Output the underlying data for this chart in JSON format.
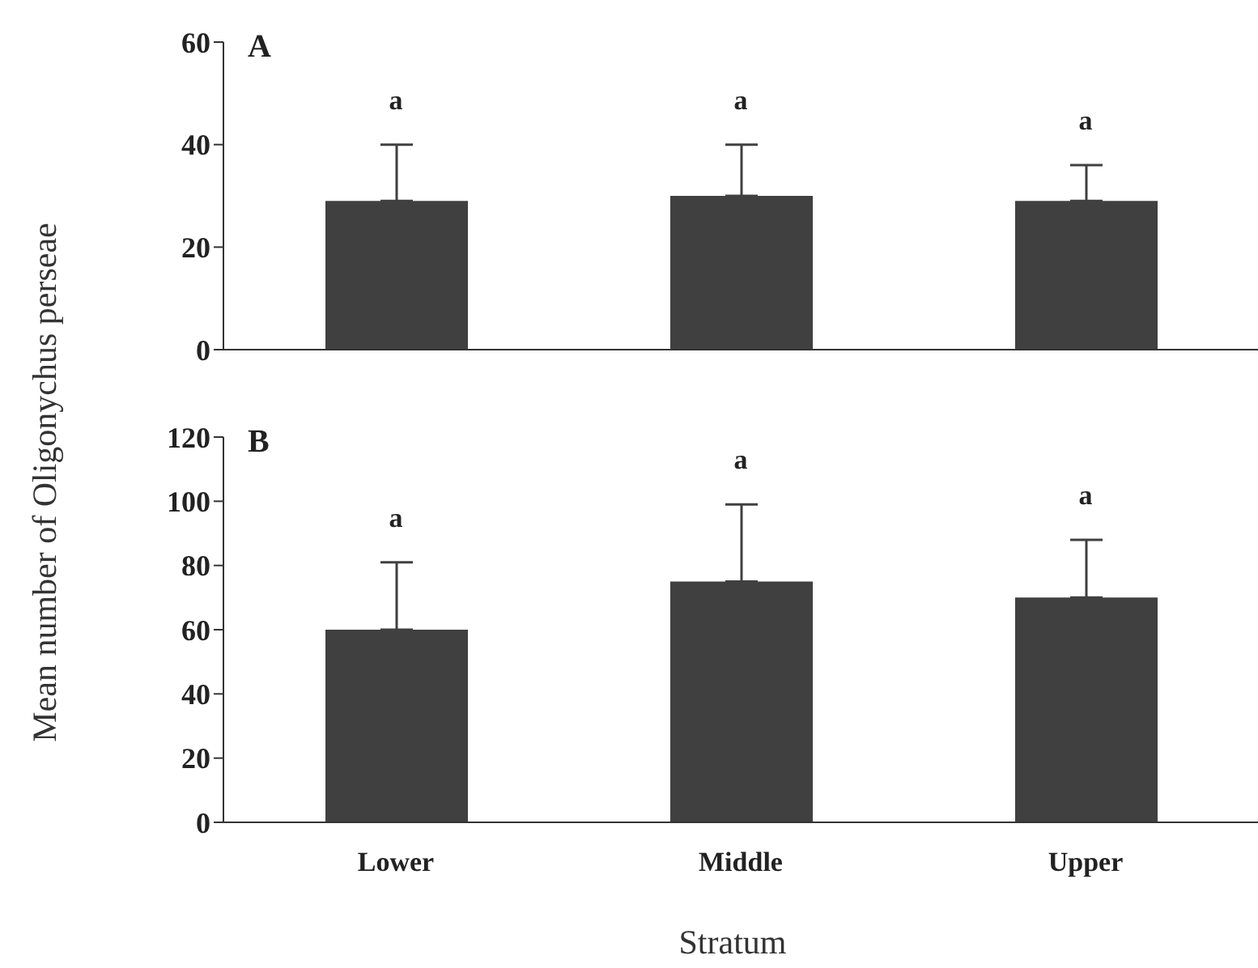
{
  "chart_data": [
    {
      "type": "bar",
      "title": "A",
      "ylabel": "Mean number of Oligonychus perseae",
      "categories": [
        null,
        null,
        null
      ],
      "values": [
        29,
        30,
        29
      ],
      "errors": [
        [
          29,
          40
        ],
        [
          30,
          40
        ],
        [
          29,
          36
        ]
      ],
      "color": "#404040",
      "ylim": [
        0,
        60
      ],
      "yticks": [
        0,
        20,
        40,
        60
      ],
      "grid": false,
      "tick_labels": "y",
      "annotations": [
        "a",
        "a",
        "a"
      ]
    },
    {
      "type": "bar",
      "title": "B",
      "xlabel": "Stratum",
      "categories": [
        "Lower",
        "Middle",
        "Upper"
      ],
      "values": [
        60,
        75,
        70
      ],
      "errors": [
        [
          60,
          81
        ],
        [
          75,
          99
        ],
        [
          70,
          88
        ]
      ],
      "color": "#404040",
      "ylim": [
        0,
        120
      ],
      "yticks": [
        0,
        20,
        40,
        60,
        80,
        100,
        120
      ],
      "grid": false,
      "annotations": [
        "a",
        "a",
        "a"
      ]
    }
  ]
}
